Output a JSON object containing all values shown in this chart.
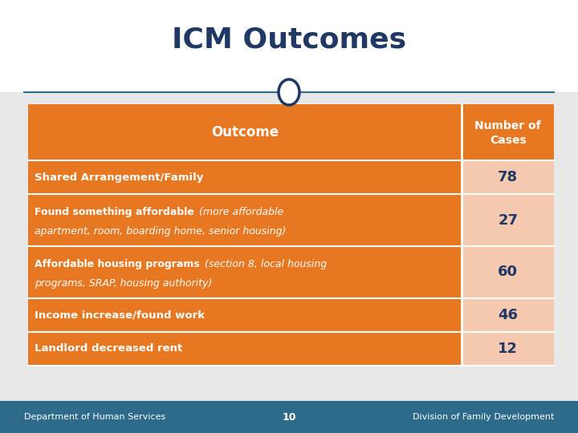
{
  "title": "ICM Outcomes",
  "title_color": "#1F3864",
  "title_fontsize": 26,
  "background_color": "#FFFFFF",
  "header_bg": "#E87722",
  "header_text_color": "#FFFFFF",
  "row_bg": "#E87722",
  "row_text_color": "#FFFFFF",
  "value_col_bg": "#F5C8B0",
  "footer_bg": "#2E6B8A",
  "footer_text_color": "#FFFFFF",
  "footer_left": "Department of Human Services",
  "footer_center": "10",
  "footer_right": "Division of Family Development",
  "col_header": "Outcome",
  "col_header2_line1": "Number of",
  "col_header2_line2": "Cases",
  "divider_color": "#2E6B8A",
  "circle_color": "#1F3864",
  "rows": [
    {
      "bold": "Shared Arrangement/Family",
      "italic": "",
      "italic2": "",
      "value": "78"
    },
    {
      "bold": "Found something affordable",
      "italic": " (more affordable",
      "italic2": "apartment, room, boarding home, senior housing)",
      "value": "27"
    },
    {
      "bold": "Affordable housing programs",
      "italic": " (section 8, local housing",
      "italic2": "programs, SRAP, housing authority)",
      "value": "60"
    },
    {
      "bold": "Income increase/found work",
      "italic": "",
      "italic2": "",
      "value": "46"
    },
    {
      "bold": "Landlord decreased rent",
      "italic": "",
      "italic2": "",
      "value": "12"
    }
  ]
}
